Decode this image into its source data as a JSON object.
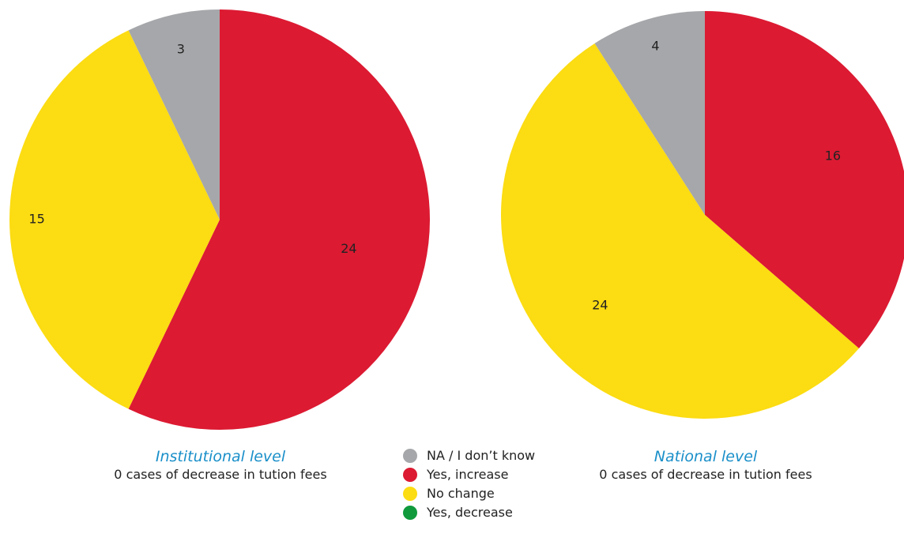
{
  "chart_data": [
    {
      "type": "pie",
      "title": "Institutional level",
      "subtitle": "0 cases of decrease in tution fees",
      "slices": [
        {
          "label": "Yes, increase",
          "value": 24,
          "color": "#dc1a32"
        },
        {
          "label": "No change",
          "value": 15,
          "color": "#fcdc12"
        },
        {
          "label": "NA / I don’t know",
          "value": 3,
          "color": "#a6a7aa"
        }
      ]
    },
    {
      "type": "pie",
      "title": "National level",
      "subtitle": "0 cases of decrease in tution fees",
      "slices": [
        {
          "label": "Yes, increase",
          "value": 16,
          "color": "#dc1a32"
        },
        {
          "label": "No change",
          "value": 24,
          "color": "#fcdc12"
        },
        {
          "label": "NA / I don’t know",
          "value": 4,
          "color": "#a6a7aa"
        }
      ]
    }
  ],
  "legend": {
    "items": [
      {
        "label": "NA / I don’t know",
        "color": "#a6a7aa"
      },
      {
        "label": "Yes, increase",
        "color": "#dc1a32"
      },
      {
        "label": "No change",
        "color": "#fcdc12"
      },
      {
        "label": "Yes, decrease",
        "color": "#109a3c"
      }
    ]
  }
}
